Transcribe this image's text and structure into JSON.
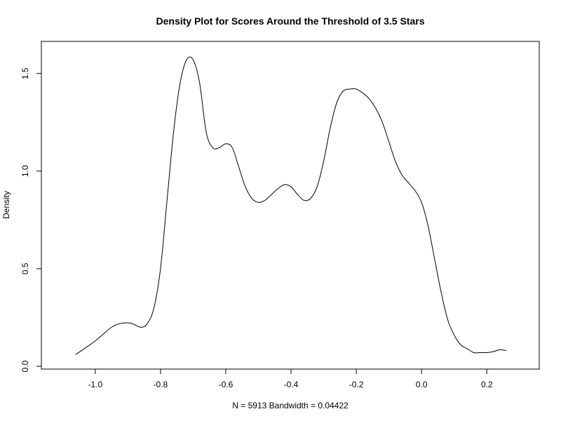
{
  "chart_data": {
    "type": "line",
    "title": "Density Plot for Scores Around the Threshold of 3.5 Stars",
    "xlabel": "N = 5913   Bandwidth = 0.04422",
    "ylabel": "Density",
    "xlim": [
      -1.12,
      0.32
    ],
    "ylim": [
      0,
      1.65
    ],
    "x_ticks": [
      -1.0,
      -0.8,
      -0.6,
      -0.4,
      -0.2,
      0.0,
      0.2
    ],
    "x_tick_labels": [
      "-1.0",
      "-0.8",
      "-0.6",
      "-0.4",
      "-0.2",
      "0.0",
      "0.2"
    ],
    "y_ticks": [
      0.0,
      0.5,
      1.0,
      1.5
    ],
    "y_tick_labels": [
      "0.0",
      "0.5",
      "1.0",
      "1.5"
    ],
    "grid": false,
    "series": [
      {
        "x": [
          -1.06,
          -1.0,
          -0.95,
          -0.92,
          -0.89,
          -0.86,
          -0.84,
          -0.82,
          -0.8,
          -0.78,
          -0.76,
          -0.74,
          -0.72,
          -0.7,
          -0.68,
          -0.66,
          -0.64,
          -0.62,
          -0.6,
          -0.58,
          -0.56,
          -0.54,
          -0.52,
          -0.5,
          -0.48,
          -0.46,
          -0.44,
          -0.42,
          -0.4,
          -0.38,
          -0.36,
          -0.34,
          -0.32,
          -0.3,
          -0.28,
          -0.26,
          -0.24,
          -0.22,
          -0.2,
          -0.18,
          -0.16,
          -0.14,
          -0.12,
          -0.1,
          -0.08,
          -0.06,
          -0.04,
          -0.02,
          0.0,
          0.02,
          0.04,
          0.06,
          0.08,
          0.1,
          0.12,
          0.14,
          0.16,
          0.18,
          0.2,
          0.22,
          0.24,
          0.26
        ],
        "y": [
          0.06,
          0.13,
          0.2,
          0.22,
          0.22,
          0.2,
          0.22,
          0.3,
          0.5,
          0.85,
          1.2,
          1.45,
          1.57,
          1.57,
          1.45,
          1.2,
          1.12,
          1.12,
          1.14,
          1.12,
          1.02,
          0.92,
          0.86,
          0.84,
          0.85,
          0.88,
          0.91,
          0.93,
          0.92,
          0.88,
          0.85,
          0.86,
          0.92,
          1.05,
          1.22,
          1.35,
          1.41,
          1.42,
          1.42,
          1.4,
          1.37,
          1.32,
          1.25,
          1.15,
          1.05,
          0.98,
          0.94,
          0.9,
          0.84,
          0.72,
          0.55,
          0.38,
          0.24,
          0.16,
          0.11,
          0.09,
          0.07,
          0.07,
          0.07,
          0.075,
          0.085,
          0.08
        ]
      }
    ]
  }
}
